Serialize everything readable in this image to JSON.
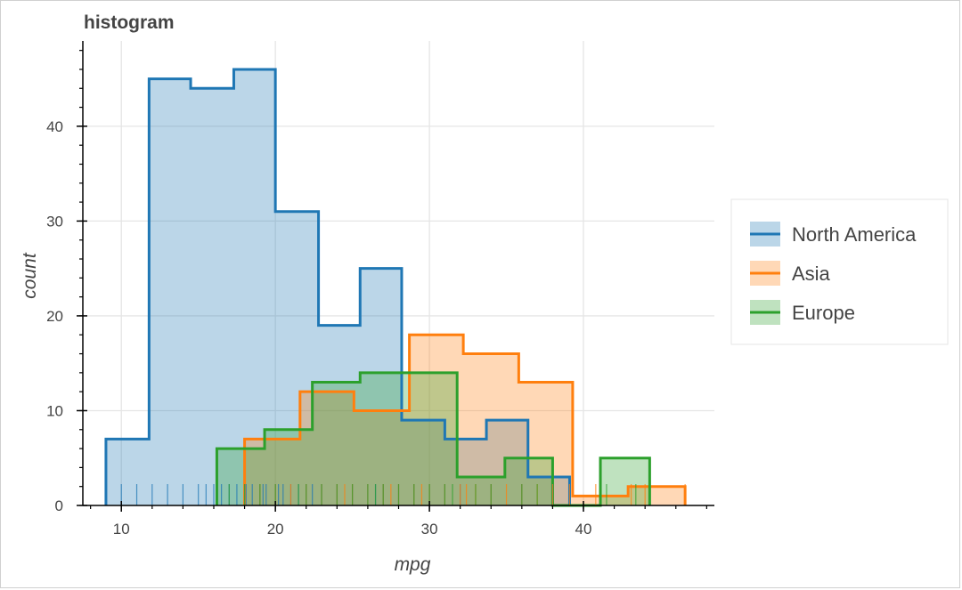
{
  "colors": {
    "north_america": "#1f77b4",
    "asia": "#ff7f0e",
    "europe": "#2ca02c",
    "grid": "#e5e5e5",
    "axis": "#000000",
    "legend_border": "#e5e5e5"
  },
  "chart_data": {
    "type": "histogram",
    "title": "histogram",
    "xlabel": "mpg",
    "ylabel": "count",
    "xlim": [
      7.5,
      48.5
    ],
    "ylim": [
      0,
      49
    ],
    "x_ticks": [
      10,
      20,
      30,
      40
    ],
    "y_ticks": [
      0,
      10,
      20,
      30,
      40
    ],
    "x_minor_step": 2,
    "y_minor_step": 2,
    "grid": true,
    "legend_position": "right",
    "series": [
      {
        "name": "North America",
        "key": "north_america",
        "edges": [
          9.0,
          11.8,
          14.5,
          17.3,
          20.0,
          22.8,
          25.5,
          28.2,
          31.0,
          33.7,
          36.4,
          39.1
        ],
        "counts": [
          7,
          45,
          44,
          46,
          31,
          19,
          25,
          9,
          7,
          9,
          3
        ],
        "rug": [
          9.0,
          10.0,
          11.0,
          12.0,
          13.0,
          14.0,
          15.0,
          15.5,
          16.0,
          16.5,
          17.0,
          17.5,
          18.0,
          18.1,
          18.5,
          19.0,
          19.2,
          19.4,
          20.0,
          20.2,
          20.5,
          21.0,
          21.5,
          22.0,
          22.4,
          23.0,
          24.0,
          25.0,
          26.0,
          26.5,
          27.0,
          28.0,
          29.0,
          30.0,
          31.0,
          32.0,
          34.0,
          36.0,
          38.0
        ]
      },
      {
        "name": "Asia",
        "key": "asia",
        "edges": [
          18.0,
          21.6,
          25.1,
          28.7,
          32.2,
          35.8,
          39.3,
          42.9,
          46.6
        ],
        "counts": [
          7,
          12,
          10,
          18,
          16,
          13,
          1,
          2
        ],
        "rug": [
          18.0,
          19.0,
          20.0,
          21.0,
          22.0,
          23.0,
          24.0,
          24.5,
          25.0,
          26.0,
          27.0,
          27.5,
          28.0,
          29.0,
          29.5,
          30.0,
          31.0,
          32.0,
          32.4,
          33.0,
          34.0,
          35.0,
          36.0,
          37.0,
          38.0,
          39.1,
          40.8,
          43.1,
          44.0,
          46.6
        ]
      },
      {
        "name": "Europe",
        "key": "europe",
        "edges": [
          16.2,
          19.3,
          22.4,
          25.5,
          28.6,
          31.8,
          34.9,
          38.0,
          41.1,
          44.3
        ],
        "counts": [
          6,
          8,
          13,
          14,
          14,
          3,
          5,
          0,
          5
        ],
        "rug": [
          16.2,
          17.0,
          18.0,
          19.0,
          20.0,
          21.5,
          22.0,
          23.0,
          24.0,
          25.0,
          26.0,
          26.5,
          27.0,
          28.0,
          29.0,
          30.0,
          31.0,
          31.5,
          33.0,
          34.0,
          36.0,
          37.0,
          41.5,
          43.4,
          44.3
        ]
      }
    ]
  }
}
